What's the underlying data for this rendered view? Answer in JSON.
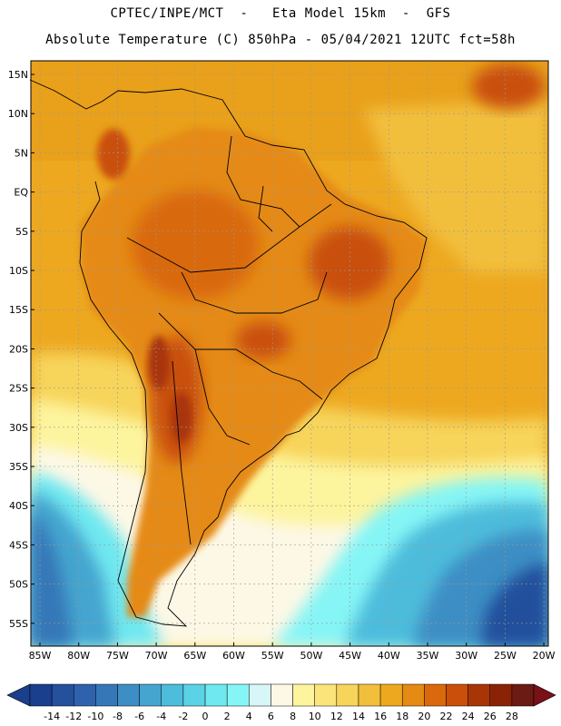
{
  "header": {
    "line1": "CPTEC/INPE/MCT  -   Eta Model 15km  -  GFS",
    "line2": "Absolute Temperature (C) 850hPa - 05/04/2021 12UTC fct=58h"
  },
  "map": {
    "lat_labels": [
      "15N",
      "10N",
      "5N",
      "EQ",
      "5S",
      "10S",
      "15S",
      "20S",
      "25S",
      "30S",
      "35S",
      "40S",
      "45S",
      "50S",
      "55S"
    ],
    "lon_labels": [
      "85W",
      "80W",
      "75W",
      "70W",
      "65W",
      "60W",
      "55W",
      "50W",
      "45W",
      "40W",
      "35W",
      "30W",
      "25W",
      "20W"
    ]
  },
  "colorbar": {
    "ticks": [
      "-14",
      "-12",
      "-10",
      "-8",
      "-6",
      "-4",
      "-2",
      "0",
      "2",
      "4",
      "6",
      "8",
      "10",
      "12",
      "14",
      "16",
      "18",
      "20",
      "22",
      "24",
      "26",
      "28"
    ],
    "colors": [
      "#1a3f8c",
      "#24509c",
      "#2e62ac",
      "#3677b8",
      "#3d8ec4",
      "#45a5cf",
      "#4ebcdb",
      "#5bd2e6",
      "#6fe8f0",
      "#86f5f5",
      "#d8f6f8",
      "#fdf8e6",
      "#fdf49e",
      "#fbe57a",
      "#f7d45a",
      "#f2bf3c",
      "#eda820",
      "#e58a12",
      "#d9690c",
      "#c94f0a",
      "#a83508",
      "#8a2306",
      "#6b1a14"
    ]
  },
  "colors": {
    "warm_interior": "#e58a12",
    "hot_core": "#c94f0a",
    "ocean_orange": "#eda820",
    "ocean_yellow": "#f2bf3c",
    "cold_water": "#3d8ec4",
    "cool_water": "#5bd2e6"
  }
}
